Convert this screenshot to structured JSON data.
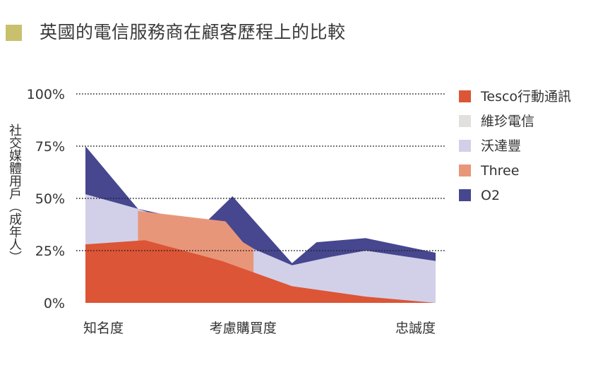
{
  "page": {
    "title": "英國的電信服務商在顧客歷程上的比較",
    "title_marker_color": "#c8c06c"
  },
  "chart_data": {
    "type": "area",
    "title": "英國的電信服務商在顧客歷程上的比較",
    "ylabel": "社交媒體用戶（成年人）",
    "xlabel": "",
    "ylim": [
      0,
      100
    ],
    "yticks": [
      0,
      25,
      50,
      75,
      100
    ],
    "ytick_labels": [
      "0%",
      "25%",
      "50%",
      "75%",
      "100%"
    ],
    "grid": "dotted horizontal at 25%, 50%, 75%, 100%",
    "legend_position": "right",
    "x_range": [
      0,
      100
    ],
    "category_labels": [
      {
        "label": "知名度",
        "x": 0
      },
      {
        "label": "考慮購買度",
        "x": 45
      },
      {
        "label": "忠誠度",
        "x": 100
      }
    ],
    "series": [
      {
        "name": "O2",
        "color": "#46478f",
        "points": [
          [
            0,
            75
          ],
          [
            15,
            45
          ],
          [
            34,
            38
          ],
          [
            42,
            51
          ],
          [
            59,
            19
          ],
          [
            66,
            29
          ],
          [
            80,
            31
          ],
          [
            100,
            24
          ],
          [
            100,
            20
          ]
        ]
      },
      {
        "name": "維珍電信",
        "color": "#e2e0dc",
        "points": [
          [
            0,
            30
          ],
          [
            16,
            30
          ],
          [
            42,
            32
          ],
          [
            59,
            8
          ],
          [
            80,
            25
          ],
          [
            100,
            20
          ]
        ]
      },
      {
        "name": "沃達豐",
        "color": "#d2d0e8",
        "points": [
          [
            0,
            52
          ],
          [
            15,
            45
          ],
          [
            45,
            28
          ],
          [
            59,
            18
          ],
          [
            70,
            22
          ],
          [
            80,
            25
          ],
          [
            100,
            20
          ]
        ]
      },
      {
        "name": "Three",
        "color": "#e8967a",
        "points": [
          [
            15,
            44
          ],
          [
            20,
            43
          ],
          [
            40,
            39
          ],
          [
            45,
            29
          ],
          [
            48,
            26
          ]
        ]
      },
      {
        "name": "Tesco行動通訊",
        "color": "#dc5536",
        "points": [
          [
            0,
            28
          ],
          [
            17,
            30
          ],
          [
            39,
            20
          ],
          [
            59,
            8
          ],
          [
            80,
            3
          ],
          [
            100,
            0
          ]
        ]
      }
    ],
    "legend": [
      "Tesco行動通訊",
      "維珍電信",
      "沃達豐",
      "Three",
      "O2"
    ]
  }
}
